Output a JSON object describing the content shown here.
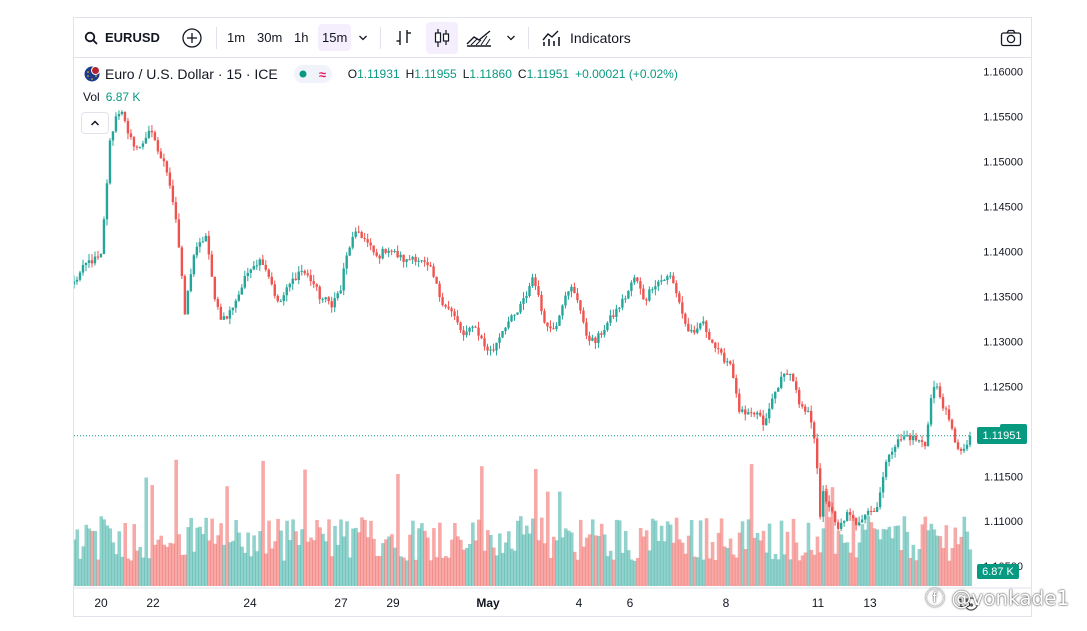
{
  "toolbar": {
    "symbol": "EURUSD",
    "timeframes": [
      "1m",
      "30m",
      "1h",
      "15m"
    ],
    "active_timeframe": "15m",
    "indicators_label": "Indicators"
  },
  "legend": {
    "title": "Euro / U.S. Dollar · 15 · ICE",
    "ohlc": {
      "o_label": "O",
      "o": "1.11931",
      "h_label": "H",
      "h": "1.11955",
      "l_label": "L",
      "l": "1.11860",
      "c_label": "C",
      "c": "1.11951",
      "change": "+0.00021 (+0.02%)"
    },
    "vol_label": "Vol",
    "vol_value": "6.87 K"
  },
  "colors": {
    "up": "#26a69a",
    "down": "#ef5350",
    "last_price_tag": "#089981",
    "accent": "#2962ff"
  },
  "chart_data": {
    "type": "candlestick",
    "symbol": "EURUSD",
    "interval": "15",
    "y_ticks": [
      "1.16000",
      "1.15500",
      "1.15000",
      "1.14500",
      "1.14000",
      "1.13500",
      "1.13000",
      "1.12500",
      "1.12000",
      "1.11500",
      "1.11000",
      "1.10500"
    ],
    "ylim": [
      1.1028,
      1.1615
    ],
    "x_ticks": [
      "20",
      "22",
      "24",
      "27",
      "29",
      "May",
      "4",
      "6",
      "8",
      "11",
      "13",
      "15"
    ],
    "last_price": "1.11951",
    "last_volume": "6.87 K",
    "price_path": [
      [
        0.0,
        1.1365
      ],
      [
        1.5,
        1.1388
      ],
      [
        3.0,
        1.1393
      ],
      [
        3.4,
        1.144
      ],
      [
        4.0,
        1.152
      ],
      [
        4.6,
        1.1548
      ],
      [
        5.3,
        1.156
      ],
      [
        6.0,
        1.1528
      ],
      [
        7.3,
        1.1513
      ],
      [
        8.4,
        1.1536
      ],
      [
        9.6,
        1.1506
      ],
      [
        10.5,
        1.1488
      ],
      [
        11.4,
        1.1435
      ],
      [
        12.0,
        1.1375
      ],
      [
        12.3,
        1.1325
      ],
      [
        13.3,
        1.1395
      ],
      [
        14.7,
        1.1418
      ],
      [
        15.6,
        1.1355
      ],
      [
        16.3,
        1.1328
      ],
      [
        17.0,
        1.1325
      ],
      [
        18.5,
        1.1355
      ],
      [
        19.7,
        1.1384
      ],
      [
        21.0,
        1.1391
      ],
      [
        21.9,
        1.137
      ],
      [
        22.8,
        1.134
      ],
      [
        24.2,
        1.1365
      ],
      [
        25.3,
        1.138
      ],
      [
        26.6,
        1.1367
      ],
      [
        27.5,
        1.1348
      ],
      [
        28.8,
        1.1342
      ],
      [
        29.8,
        1.1358
      ],
      [
        30.2,
        1.1385
      ],
      [
        30.9,
        1.1411
      ],
      [
        31.8,
        1.1422
      ],
      [
        32.8,
        1.1408
      ],
      [
        33.8,
        1.1393
      ],
      [
        35.0,
        1.1404
      ],
      [
        36.0,
        1.1396
      ],
      [
        37.2,
        1.1388
      ],
      [
        37.7,
        1.1395
      ],
      [
        38.5,
        1.1391
      ],
      [
        39.9,
        1.1378
      ],
      [
        40.9,
        1.1348
      ],
      [
        42.3,
        1.133
      ],
      [
        43.6,
        1.1303
      ],
      [
        44.5,
        1.132
      ],
      [
        45.2,
        1.1308
      ],
      [
        45.9,
        1.1293
      ],
      [
        46.7,
        1.1288
      ],
      [
        47.3,
        1.1303
      ],
      [
        48.1,
        1.1318
      ],
      [
        49.4,
        1.133
      ],
      [
        50.5,
        1.1352
      ],
      [
        51.3,
        1.1375
      ],
      [
        52.0,
        1.134
      ],
      [
        52.9,
        1.1314
      ],
      [
        53.8,
        1.1319
      ],
      [
        54.5,
        1.1343
      ],
      [
        55.6,
        1.136
      ],
      [
        56.3,
        1.1346
      ],
      [
        57.0,
        1.131
      ],
      [
        58.1,
        1.1298
      ],
      [
        59.4,
        1.1318
      ],
      [
        60.6,
        1.1335
      ],
      [
        61.7,
        1.1352
      ],
      [
        62.6,
        1.1372
      ],
      [
        63.7,
        1.1345
      ],
      [
        64.6,
        1.1363
      ],
      [
        65.5,
        1.1368
      ],
      [
        66.6,
        1.1372
      ],
      [
        67.4,
        1.135
      ],
      [
        68.3,
        1.1316
      ],
      [
        69.2,
        1.1305
      ],
      [
        70.0,
        1.1323
      ],
      [
        70.7,
        1.131
      ],
      [
        71.2,
        1.13
      ],
      [
        72.1,
        1.1284
      ],
      [
        72.7,
        1.128
      ],
      [
        73.4,
        1.1275
      ],
      [
        74.1,
        1.1225
      ],
      [
        75.0,
        1.1216
      ],
      [
        76.2,
        1.122
      ],
      [
        77.1,
        1.1206
      ],
      [
        77.8,
        1.1232
      ],
      [
        78.6,
        1.1252
      ],
      [
        79.6,
        1.1267
      ],
      [
        80.3,
        1.1257
      ],
      [
        81.0,
        1.1225
      ],
      [
        81.9,
        1.122
      ],
      [
        82.4,
        1.121
      ],
      [
        82.9,
        1.1175
      ],
      [
        83.2,
        1.108
      ],
      [
        83.4,
        1.1135
      ],
      [
        84.4,
        1.1115
      ],
      [
        85.2,
        1.1088
      ],
      [
        86.2,
        1.1108
      ],
      [
        87.3,
        1.1098
      ],
      [
        88.6,
        1.1113
      ],
      [
        89.4,
        1.111
      ],
      [
        90.0,
        1.1135
      ],
      [
        91.0,
        1.1178
      ],
      [
        92.1,
        1.119
      ],
      [
        93.0,
        1.1195
      ],
      [
        94.1,
        1.119
      ],
      [
        95.0,
        1.1185
      ],
      [
        95.6,
        1.1234
      ],
      [
        96.1,
        1.1253
      ],
      [
        96.8,
        1.1235
      ],
      [
        97.6,
        1.1212
      ],
      [
        98.4,
        1.1188
      ],
      [
        99.2,
        1.1173
      ],
      [
        100.0,
        1.1195
      ]
    ]
  }
}
